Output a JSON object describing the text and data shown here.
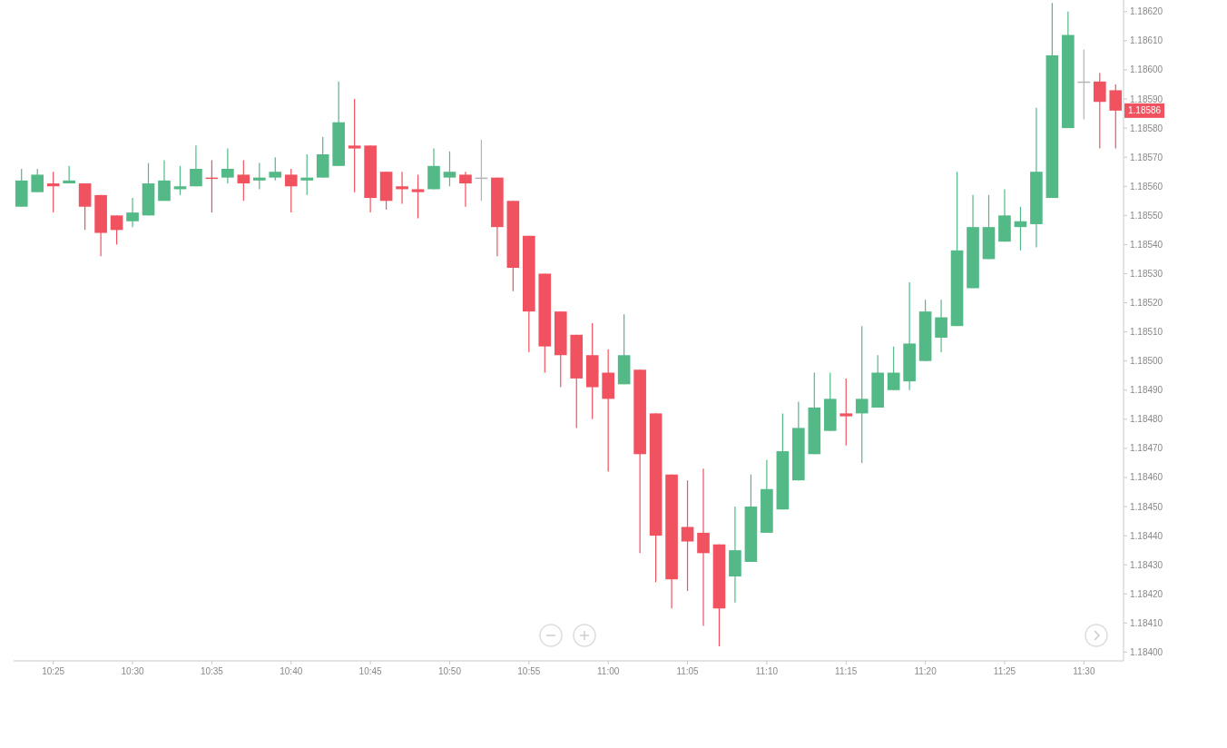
{
  "chart_data": {
    "type": "candlestick",
    "categories": [
      null,
      null,
      "10:25",
      null,
      null,
      null,
      null,
      "10:30",
      null,
      null,
      null,
      null,
      "10:35",
      null,
      null,
      null,
      null,
      "10:40",
      null,
      null,
      null,
      null,
      "10:45",
      null,
      null,
      null,
      null,
      "10:50",
      null,
      null,
      null,
      null,
      "10:55",
      null,
      null,
      null,
      null,
      "11:00",
      null,
      null,
      null,
      null,
      "11:05",
      null,
      null,
      null,
      null,
      "11:10",
      null,
      null,
      null,
      null,
      "11:15",
      null,
      null,
      null,
      null,
      "11:20",
      null,
      null,
      null,
      null,
      "11:25",
      null,
      null,
      null,
      null,
      "11:30",
      null,
      null
    ],
    "ohlc": [
      [
        1.18553,
        1.18566,
        1.18553,
        1.18562
      ],
      [
        1.18558,
        1.18566,
        1.18558,
        1.18564
      ],
      [
        1.18561,
        1.18565,
        1.18551,
        1.1856
      ],
      [
        1.18561,
        1.18567,
        1.18561,
        1.18562
      ],
      [
        1.18561,
        1.18561,
        1.18545,
        1.18553
      ],
      [
        1.18557,
        1.18557,
        1.18536,
        1.18544
      ],
      [
        1.1855,
        1.1855,
        1.1854,
        1.18545
      ],
      [
        1.18548,
        1.18556,
        1.18546,
        1.18551
      ],
      [
        1.1855,
        1.18568,
        1.1855,
        1.18561
      ],
      [
        1.18555,
        1.18569,
        1.18555,
        1.18562
      ],
      [
        1.18559,
        1.18567,
        1.18557,
        1.1856
      ],
      [
        1.1856,
        1.18574,
        1.1856,
        1.18566
      ],
      [
        1.18563,
        1.18569,
        1.18551,
        1.18563
      ],
      [
        1.18563,
        1.18573,
        1.18561,
        1.18566
      ],
      [
        1.18564,
        1.18569,
        1.18555,
        1.18561
      ],
      [
        1.18562,
        1.18568,
        1.18559,
        1.18563
      ],
      [
        1.18563,
        1.1857,
        1.18562,
        1.18565
      ],
      [
        1.18564,
        1.18566,
        1.18551,
        1.1856
      ],
      [
        1.18562,
        1.18571,
        1.18557,
        1.18563
      ],
      [
        1.18563,
        1.18577,
        1.18563,
        1.18571
      ],
      [
        1.18567,
        1.18596,
        1.18567,
        1.18582
      ],
      [
        1.18574,
        1.1859,
        1.18558,
        1.18573
      ],
      [
        1.18574,
        1.18574,
        1.18551,
        1.18556
      ],
      [
        1.18565,
        1.18565,
        1.18552,
        1.18555
      ],
      [
        1.1856,
        1.18565,
        1.18554,
        1.18559
      ],
      [
        1.18559,
        1.18564,
        1.18549,
        1.18558
      ],
      [
        1.18559,
        1.18573,
        1.18559,
        1.18567
      ],
      [
        1.18563,
        1.18572,
        1.1856,
        1.18565
      ],
      [
        1.18564,
        1.18565,
        1.18553,
        1.18561
      ],
      [
        1.18563,
        1.18576,
        1.18555,
        1.18563
      ],
      [
        1.18563,
        1.18563,
        1.18536,
        1.18546
      ],
      [
        1.18555,
        1.18555,
        1.18524,
        1.18532
      ],
      [
        1.18543,
        1.18543,
        1.18503,
        1.18517
      ],
      [
        1.1853,
        1.1853,
        1.18496,
        1.18505
      ],
      [
        1.18517,
        1.18517,
        1.18491,
        1.18502
      ],
      [
        1.18509,
        1.18509,
        1.18477,
        1.18494
      ],
      [
        1.18502,
        1.18513,
        1.1848,
        1.18491
      ],
      [
        1.18496,
        1.18504,
        1.18462,
        1.18487
      ],
      [
        1.18492,
        1.18516,
        1.18492,
        1.18502
      ],
      [
        1.18497,
        1.18497,
        1.18434,
        1.18468
      ],
      [
        1.18482,
        1.18482,
        1.18424,
        1.1844
      ],
      [
        1.18461,
        1.18461,
        1.18415,
        1.18425
      ],
      [
        1.18443,
        1.18459,
        1.18421,
        1.18438
      ],
      [
        1.18441,
        1.18463,
        1.18409,
        1.18434
      ],
      [
        1.18437,
        1.18437,
        1.18402,
        1.18415
      ],
      [
        1.18426,
        1.1845,
        1.18417,
        1.18435
      ],
      [
        1.18431,
        1.18461,
        1.18431,
        1.1845
      ],
      [
        1.18441,
        1.18466,
        1.18441,
        1.18456
      ],
      [
        1.18449,
        1.18482,
        1.18449,
        1.18469
      ],
      [
        1.18459,
        1.18486,
        1.18459,
        1.18477
      ],
      [
        1.18468,
        1.18496,
        1.18468,
        1.18484
      ],
      [
        1.18476,
        1.18496,
        1.18476,
        1.18487
      ],
      [
        1.18482,
        1.18494,
        1.18471,
        1.18481
      ],
      [
        1.18482,
        1.18512,
        1.18465,
        1.18487
      ],
      [
        1.18484,
        1.18502,
        1.18484,
        1.18496
      ],
      [
        1.1849,
        1.18505,
        1.1849,
        1.18496
      ],
      [
        1.18493,
        1.18527,
        1.1849,
        1.18506
      ],
      [
        1.185,
        1.18521,
        1.185,
        1.18517
      ],
      [
        1.18508,
        1.18521,
        1.18503,
        1.18515
      ],
      [
        1.18512,
        1.18565,
        1.18512,
        1.18538
      ],
      [
        1.18525,
        1.18557,
        1.18525,
        1.18546
      ],
      [
        1.18535,
        1.18557,
        1.18535,
        1.18546
      ],
      [
        1.18541,
        1.18559,
        1.18541,
        1.1855
      ],
      [
        1.18546,
        1.18553,
        1.18538,
        1.18548
      ],
      [
        1.18547,
        1.18587,
        1.18539,
        1.18565
      ],
      [
        1.18556,
        1.18623,
        1.18556,
        1.18605
      ],
      [
        1.1858,
        1.1862,
        1.1858,
        1.18612
      ],
      [
        1.18596,
        1.18607,
        1.18583,
        1.18596
      ],
      [
        1.18596,
        1.18599,
        1.18573,
        1.18589
      ],
      [
        1.18593,
        1.18595,
        1.18573,
        1.18586
      ]
    ],
    "colors": [
      "#53b987",
      "#53b987",
      "#f0525f",
      "#53b987",
      "#f0525f",
      "#f0525f",
      "#f0525f",
      "#53b987",
      "#53b987",
      "#53b987",
      "#53b987",
      "#53b987",
      "#f0525f",
      "#53b987",
      "#f0525f",
      "#53b987",
      "#53b987",
      "#f0525f",
      "#53b987",
      "#53b987",
      "#53b987",
      "#f0525f",
      "#f0525f",
      "#f0525f",
      "#f0525f",
      "#f0525f",
      "#53b987",
      "#53b987",
      "#f0525f",
      "#b4b4b4",
      "#f0525f",
      "#f0525f",
      "#f0525f",
      "#f0525f",
      "#f0525f",
      "#f0525f",
      "#f0525f",
      "#f0525f",
      "#53b987",
      "#f0525f",
      "#f0525f",
      "#f0525f",
      "#f0525f",
      "#f0525f",
      "#f0525f",
      "#53b987",
      "#53b987",
      "#53b987",
      "#53b987",
      "#53b987",
      "#53b987",
      "#53b987",
      "#f0525f",
      "#53b987",
      "#53b987",
      "#53b987",
      "#53b987",
      "#53b987",
      "#53b987",
      "#53b987",
      "#53b987",
      "#53b987",
      "#53b987",
      "#53b987",
      "#53b987",
      "#53b987",
      "#53b987",
      "#b4b4b4",
      "#f0525f",
      "#f0525f"
    ],
    "ylim": [
      1.18397,
      1.18624
    ],
    "yticks": [
      {
        "value": 1.184,
        "label": "1.18400"
      },
      {
        "value": 1.1841,
        "label": "1.18410"
      },
      {
        "value": 1.1842,
        "label": "1.18420"
      },
      {
        "value": 1.1843,
        "label": "1.18430"
      },
      {
        "value": 1.1844,
        "label": "1.18440"
      },
      {
        "value": 1.1845,
        "label": "1.18450"
      },
      {
        "value": 1.1846,
        "label": "1.18460"
      },
      {
        "value": 1.1847,
        "label": "1.18470"
      },
      {
        "value": 1.1848,
        "label": "1.18480"
      },
      {
        "value": 1.1849,
        "label": "1.18490"
      },
      {
        "value": 1.185,
        "label": "1.18500"
      },
      {
        "value": 1.1851,
        "label": "1.18510"
      },
      {
        "value": 1.1852,
        "label": "1.18520"
      },
      {
        "value": 1.1853,
        "label": "1.18530"
      },
      {
        "value": 1.1854,
        "label": "1.18540"
      },
      {
        "value": 1.1855,
        "label": "1.18550"
      },
      {
        "value": 1.1856,
        "label": "1.18560"
      },
      {
        "value": 1.1857,
        "label": "1.18570"
      },
      {
        "value": 1.1858,
        "label": "1.18580"
      },
      {
        "value": 1.1859,
        "label": "1.18590"
      },
      {
        "value": 1.186,
        "label": "1.18600"
      },
      {
        "value": 1.1861,
        "label": "1.18610"
      },
      {
        "value": 1.1862,
        "label": "1.18620"
      }
    ],
    "annotations": [
      {
        "text": "1.18586",
        "y": 1.18586
      }
    ],
    "grid": false
  }
}
